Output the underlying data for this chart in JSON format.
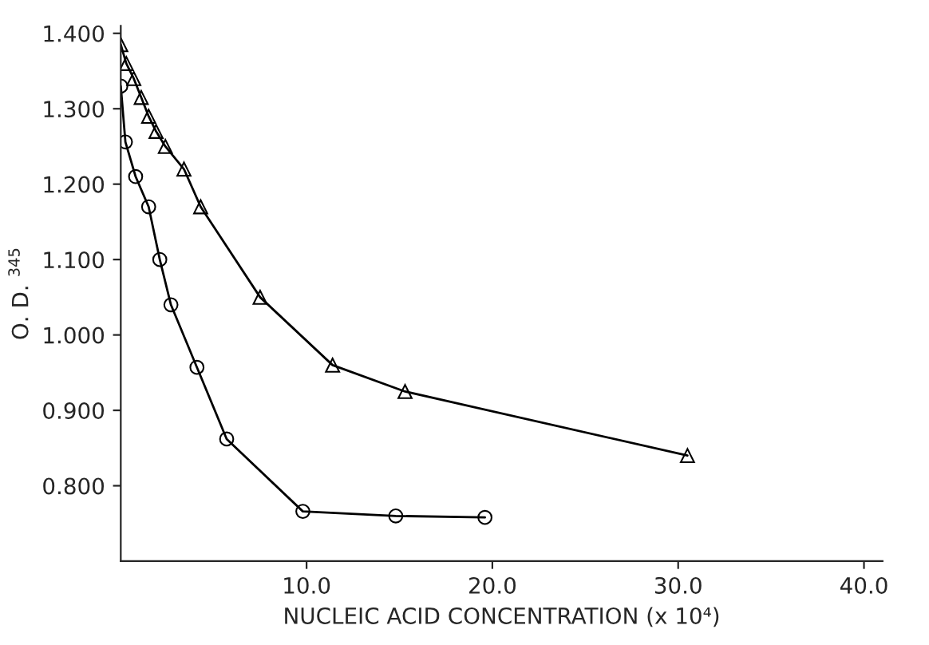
{
  "chart_data": {
    "type": "line",
    "xlabel": "NUCLEIC ACID CONCENTRATION (x 10⁴)",
    "ylabel": "O. D. $^{345}$",
    "xlim": [
      0,
      41
    ],
    "ylim": [
      0.7,
      1.41
    ],
    "xticks": [
      {
        "value": 10,
        "label": "10.0"
      },
      {
        "value": 20,
        "label": "20.0"
      },
      {
        "value": 30,
        "label": "30.0"
      },
      {
        "value": 40,
        "label": "40.0"
      }
    ],
    "yticks": [
      {
        "value": 0.8,
        "label": "0.800"
      },
      {
        "value": 0.9,
        "label": "0.900"
      },
      {
        "value": 1.0,
        "label": "1.000"
      },
      {
        "value": 1.1,
        "label": "1.100"
      },
      {
        "value": 1.2,
        "label": "1.200"
      },
      {
        "value": 1.3,
        "label": "1.300"
      },
      {
        "value": 1.4,
        "label": "1.400"
      }
    ],
    "grid": false,
    "series": [
      {
        "color": "#000000",
        "marker": "circle",
        "x": [
          0,
          0.25,
          0.8,
          1.5,
          2.1,
          2.7,
          4.1,
          5.7,
          9.8,
          14.8,
          19.6
        ],
        "values": [
          1.33,
          1.256,
          1.21,
          1.17,
          1.1,
          1.04,
          0.957,
          0.862,
          0.766,
          0.76,
          0.758
        ]
      },
      {
        "color": "#000000",
        "marker": "triangle",
        "x": [
          0,
          0.3,
          0.7,
          1.1,
          1.5,
          1.9,
          2.4,
          3.4,
          4.3,
          7.5,
          11.4,
          15.3,
          30.5
        ],
        "values": [
          1.385,
          1.36,
          1.34,
          1.315,
          1.29,
          1.27,
          1.25,
          1.22,
          1.17,
          1.05,
          0.96,
          0.925,
          0.84
        ]
      }
    ]
  }
}
